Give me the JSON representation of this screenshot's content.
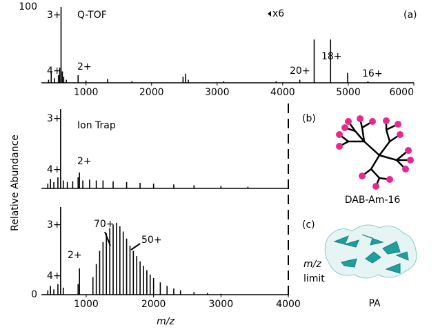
{
  "figure": {
    "ylabel": "Relative Abundance",
    "xlabel": "m/z",
    "limit_label": [
      "m/z",
      "limit"
    ],
    "structures": [
      "DAB-Am-16",
      "PA"
    ]
  },
  "chart_data": [
    {
      "type": "stick",
      "color": "#000000",
      "xlim": [
        320,
        6000
      ],
      "ylim": [
        0,
        100
      ],
      "xticks": [
        1000,
        2000,
        3000,
        4000,
        5000,
        6000
      ],
      "yticks": [
        100
      ],
      "annotations": [
        "3+",
        "Q-TOF",
        "4+",
        "2+",
        "x6",
        "(a)",
        "20+",
        "18+",
        "16+"
      ],
      "x": [
        430,
        470,
        520,
        580,
        600,
        620,
        640,
        660,
        700,
        880,
        1000,
        1330,
        1700,
        2480,
        2520,
        2560,
        3100,
        3900,
        4260,
        4480,
        4730,
        4990,
        5300
      ],
      "values": [
        4,
        15,
        6,
        10,
        20,
        100,
        15,
        8,
        4,
        10,
        3,
        5,
        2,
        8,
        12,
        4,
        2,
        2,
        4,
        57,
        57,
        13,
        2
      ]
    },
    {
      "type": "stick",
      "color": "#000000",
      "xlim": [
        335,
        4000
      ],
      "ylim": [
        0,
        100
      ],
      "annotations": [
        "3+",
        "Ion Trap",
        "4+",
        "2+",
        "(b)"
      ],
      "x": [
        430,
        470,
        520,
        580,
        620,
        660,
        720,
        800,
        880,
        900,
        950,
        1050,
        1150,
        1250,
        1400,
        1600,
        1800,
        2000,
        2300,
        2600,
        3000,
        3400
      ],
      "values": [
        6,
        12,
        8,
        14,
        100,
        10,
        8,
        9,
        14,
        20,
        10,
        11,
        10,
        10,
        9,
        8,
        7,
        6,
        5,
        4,
        3,
        2
      ]
    },
    {
      "type": "stick",
      "color": "#000000",
      "xlim": [
        335,
        4000
      ],
      "ylim": [
        0,
        100
      ],
      "xticks": [
        1000,
        2000,
        3000,
        4000
      ],
      "yticks": [
        0
      ],
      "annotations": [
        "3+",
        "4+",
        "2+",
        "70+",
        "50+",
        "(c)"
      ],
      "x": [
        430,
        470,
        520,
        580,
        620,
        660,
        880,
        900,
        1100,
        1150,
        1200,
        1250,
        1300,
        1350,
        1400,
        1450,
        1500,
        1550,
        1600,
        1650,
        1700,
        1750,
        1800,
        1850,
        1900,
        1950,
        2000,
        2100,
        2200,
        2300,
        2400,
        2600,
        2800,
        3000
      ],
      "values": [
        5,
        10,
        6,
        12,
        100,
        8,
        12,
        30,
        20,
        35,
        50,
        60,
        70,
        76,
        80,
        82,
        78,
        72,
        64,
        56,
        50,
        44,
        38,
        33,
        28,
        23,
        19,
        14,
        10,
        7,
        5,
        3,
        2,
        1
      ]
    }
  ]
}
